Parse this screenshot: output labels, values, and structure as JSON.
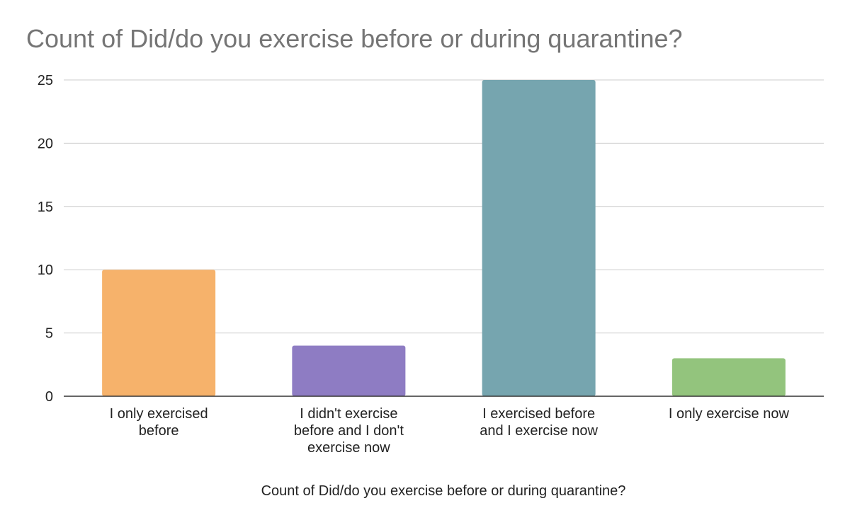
{
  "chart_data": {
    "type": "bar",
    "title": "Count of Did/do you exercise before or during quarantine?",
    "xlabel": "Count of Did/do you exercise before or during quarantine?",
    "ylabel": "",
    "categories": [
      "I only exercised before",
      "I didn't exercise before and I don't exercise now",
      "I exercised before and I exercise now",
      "I only exercise now"
    ],
    "category_label_lines": [
      [
        "I only exercised",
        "before"
      ],
      [
        "I didn't exercise",
        "before and I don't",
        "exercise now"
      ],
      [
        "I exercised before",
        "and I exercise now"
      ],
      [
        "I only exercise now"
      ]
    ],
    "values": [
      10,
      4,
      25,
      3
    ],
    "colors": [
      "#f6b26b",
      "#8e7cc3",
      "#76a5af",
      "#93c47d"
    ],
    "ylim": [
      0,
      25
    ],
    "yticks": [
      0,
      5,
      10,
      15,
      20,
      25
    ],
    "grid": true,
    "legend": "none"
  }
}
